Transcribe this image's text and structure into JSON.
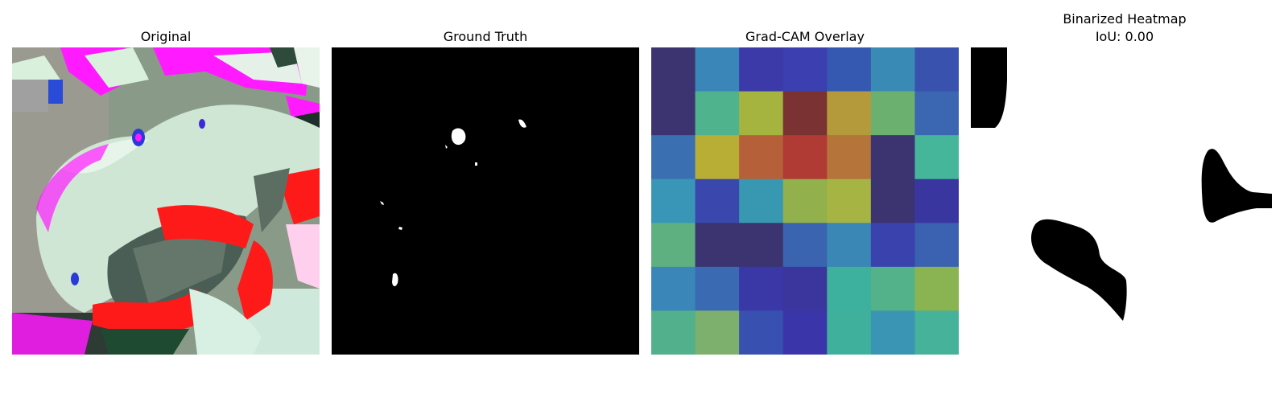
{
  "panels": {
    "original": {
      "title": "Original"
    },
    "ground_truth": {
      "title": "Ground Truth"
    },
    "gradcam": {
      "title": "Grad-CAM Overlay",
      "grid": [
        [
          "#3b3470",
          "#3a86b8",
          "#3b3aa8",
          "#3b3fb0",
          "#3558b0",
          "#3a8ab6",
          "#3852ae"
        ],
        [
          "#3b3470",
          "#4fb48e",
          "#a4b43e",
          "#7a3232",
          "#b49a3a",
          "#6cb070",
          "#3a66b2"
        ],
        [
          "#3a70b2",
          "#b8ae36",
          "#b6603a",
          "#b03a34",
          "#b4743a",
          "#3b3470",
          "#46b69a"
        ],
        [
          "#3a96b6",
          "#3a48ae",
          "#3898b2",
          "#92b04c",
          "#a6b444",
          "#3b3470",
          "#3a36a0"
        ],
        [
          "#5eb080",
          "#3b3470",
          "#3b3470",
          "#3a64b0",
          "#3a86b4",
          "#3a42ae",
          "#3a62b0"
        ],
        [
          "#3a86b8",
          "#3a6ab2",
          "#3a38a6",
          "#3b369e",
          "#3eb09e",
          "#54b28a",
          "#8ab452"
        ],
        [
          "#52b08c",
          "#7cb06c",
          "#3850b0",
          "#3a36aa",
          "#3eb09c",
          "#3a94b4",
          "#46b29a"
        ]
      ]
    },
    "binarized": {
      "title_line1": "Binarized Heatmap",
      "title_line2": "IoU: 0.00"
    }
  },
  "colors": {
    "background": "#ffffff",
    "mask_black": "#000000",
    "mask_white": "#ffffff",
    "leaf_pale": "#cfe6d4",
    "magenta": "#ff1aff",
    "red": "#ff1a1a"
  }
}
